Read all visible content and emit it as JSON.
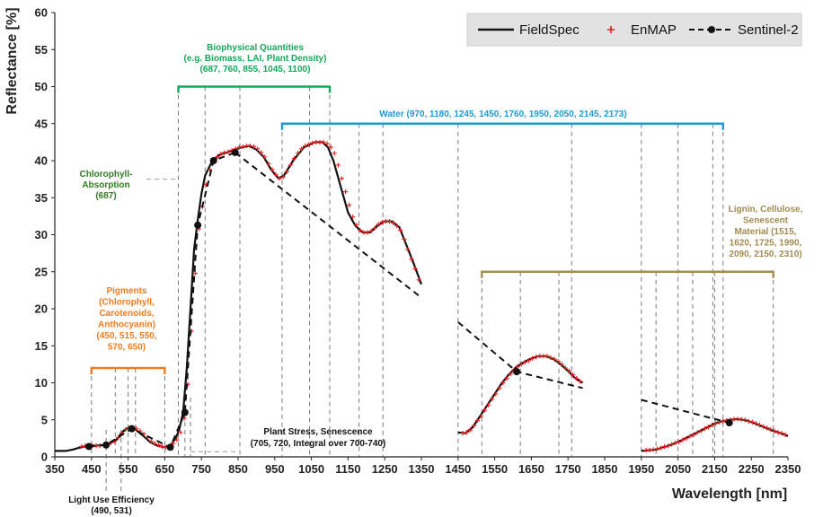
{
  "chart_data": {
    "type": "line",
    "xlabel": "Wavelength [nm]",
    "ylabel": "Reflectance [%]",
    "xlim": [
      350,
      2350
    ],
    "ylim": [
      0,
      60
    ],
    "x_ticks": [
      "350",
      "450",
      "550",
      "650",
      "750",
      "850",
      "950",
      "1050",
      "1150",
      "1250",
      "1350",
      "1450",
      "1550",
      "1650",
      "1750",
      "1850",
      "1950",
      "2050",
      "2150",
      "2250",
      "2350"
    ],
    "y_ticks": [
      "0",
      "5",
      "10",
      "15",
      "20",
      "25",
      "30",
      "35",
      "40",
      "45",
      "50",
      "55",
      "60"
    ],
    "grid": false,
    "legend": {
      "placement": "top-right",
      "entries": [
        {
          "label": "FieldSpec",
          "style": "solid-line",
          "color": "#111111"
        },
        {
          "label": "EnMAP",
          "style": "plus-marker",
          "color": "#e8201c"
        },
        {
          "label": "Sentinel-2",
          "style": "dashed-line-dot",
          "color": "#111111"
        }
      ]
    },
    "series": [
      {
        "name": "FieldSpec",
        "segments": [
          {
            "x": [
              350,
              380,
              400,
              420,
              440,
              460,
              480,
              500,
              520,
              535,
              550,
              560,
              570,
              590,
              610,
              630,
              650,
              665,
              680,
              690,
              700,
              710,
              720,
              730,
              740,
              750,
              760,
              780,
              800,
              830,
              860,
              880,
              900,
              920,
              940,
              960,
              975,
              1000,
              1030,
              1060,
              1080,
              1095,
              1110,
              1130,
              1150,
              1170,
              1190,
              1210,
              1230,
              1250,
              1270,
              1290,
              1310,
              1330,
              1350
            ],
            "y": [
              0.8,
              0.8,
              1.0,
              1.3,
              1.5,
              1.5,
              1.6,
              1.8,
              2.4,
              3.4,
              3.9,
              3.9,
              3.7,
              2.9,
              2.0,
              1.5,
              1.3,
              1.5,
              2.5,
              3.8,
              6.0,
              12.0,
              20.0,
              28.0,
              32.0,
              35.5,
              38.0,
              40.0,
              40.8,
              41.3,
              41.8,
              42.0,
              41.5,
              40.5,
              38.8,
              37.6,
              38.0,
              40.0,
              41.8,
              42.5,
              42.5,
              41.8,
              40.0,
              36.5,
              33.0,
              31.2,
              30.3,
              30.3,
              31.2,
              31.8,
              31.8,
              31.0,
              28.5,
              26.0,
              23.3
            ]
          },
          {
            "x": [
              1450,
              1470,
              1490,
              1510,
              1530,
              1550,
              1570,
              1590,
              1610,
              1630,
              1650,
              1670,
              1690,
              1710,
              1730,
              1750,
              1770,
              1790
            ],
            "y": [
              3.3,
              3.2,
              4.0,
              5.5,
              7.0,
              8.5,
              10.0,
              11.2,
              12.2,
              12.8,
              13.3,
              13.6,
              13.6,
              13.2,
              12.5,
              11.6,
              10.6,
              10.0
            ]
          },
          {
            "x": [
              1950,
              1970,
              1990,
              2010,
              2030,
              2050,
              2070,
              2090,
              2110,
              2130,
              2150,
              2170,
              2190,
              2210,
              2230,
              2250,
              2270,
              2290,
              2310,
              2330,
              2350
            ],
            "y": [
              0.8,
              0.9,
              1.0,
              1.3,
              1.6,
              2.0,
              2.5,
              3.0,
              3.5,
              4.0,
              4.5,
              4.8,
              5.0,
              5.1,
              5.0,
              4.7,
              4.3,
              3.9,
              3.5,
              3.2,
              2.8
            ]
          }
        ]
      },
      {
        "name": "EnMAP",
        "segments": [
          {
            "x": [
              423,
              433,
              443,
              453,
              463,
              473,
              483,
              493,
              503,
              513,
              523,
              533,
              543,
              553,
              563,
              573,
              583,
              593,
              603,
              613,
              623,
              633,
              643,
              653,
              663,
              673,
              683,
              693,
              703,
              713,
              723,
              733,
              743,
              753,
              763,
              773,
              783,
              793,
              803,
              813,
              823,
              833,
              843,
              853,
              863,
              873,
              883,
              893,
              903,
              913,
              923,
              933,
              943,
              953,
              963,
              973,
              983,
              993,
              1003,
              1013,
              1023,
              1033,
              1043,
              1053,
              1063,
              1073,
              1083,
              1093,
              1103,
              1113,
              1123,
              1133,
              1143,
              1153,
              1163,
              1173,
              1183,
              1193,
              1203,
              1213,
              1223,
              1233,
              1243,
              1253,
              1263,
              1273,
              1283,
              1293,
              1303,
              1313,
              1323,
              1333,
              1343
            ],
            "y": [
              1.4,
              1.5,
              1.5,
              1.5,
              1.5,
              1.5,
              1.6,
              1.7,
              1.9,
              2.1,
              2.6,
              3.2,
              3.7,
              3.9,
              3.9,
              3.8,
              3.5,
              3.1,
              2.6,
              2.1,
              1.8,
              1.6,
              1.4,
              1.3,
              1.4,
              1.8,
              2.3,
              3.3,
              5.2,
              9.8,
              17.0,
              24.8,
              30.8,
              33.8,
              36.8,
              38.8,
              40.0,
              40.5,
              40.9,
              41.1,
              41.2,
              41.4,
              41.6,
              41.8,
              41.9,
              42.0,
              42.0,
              41.9,
              41.6,
              41.1,
              40.5,
              39.6,
              38.8,
              38.1,
              37.6,
              37.8,
              38.5,
              39.4,
              40.3,
              41.0,
              41.6,
              42.0,
              42.2,
              42.4,
              42.5,
              42.5,
              42.5,
              42.3,
              41.8,
              41.0,
              39.4,
              37.6,
              35.8,
              34.0,
              32.4,
              31.3,
              30.6,
              30.3,
              30.3,
              30.5,
              30.9,
              31.4,
              31.7,
              31.8,
              31.8,
              31.6,
              31.2,
              30.6,
              29.4,
              28.0,
              26.7,
              25.4,
              23.9
            ]
          },
          {
            "x": [
              1463,
              1473,
              1483,
              1493,
              1503,
              1513,
              1523,
              1533,
              1543,
              1553,
              1563,
              1573,
              1583,
              1593,
              1603,
              1613,
              1623,
              1633,
              1643,
              1653,
              1663,
              1673,
              1683,
              1693,
              1703,
              1713,
              1723,
              1733,
              1743,
              1753,
              1763,
              1773,
              1783
            ],
            "y": [
              3.2,
              3.3,
              3.6,
              4.2,
              4.9,
              5.5,
              6.3,
              7.0,
              7.8,
              8.5,
              9.3,
              10.0,
              10.6,
              11.2,
              11.7,
              12.2,
              12.5,
              12.8,
              13.0,
              13.3,
              13.5,
              13.6,
              13.6,
              13.6,
              13.4,
              13.2,
              12.9,
              12.5,
              12.0,
              11.6,
              11.1,
              10.6,
              10.2
            ]
          },
          {
            "x": [
              1963,
              1973,
              1983,
              1993,
              2003,
              2013,
              2023,
              2033,
              2043,
              2053,
              2063,
              2073,
              2083,
              2093,
              2103,
              2113,
              2123,
              2133,
              2143,
              2153,
              2163,
              2173,
              2183,
              2193,
              2203,
              2213,
              2223,
              2233,
              2243,
              2253,
              2263,
              2273,
              2283,
              2293,
              2303,
              2313,
              2323,
              2333,
              2343
            ],
            "y": [
              0.9,
              0.9,
              1.0,
              1.1,
              1.2,
              1.4,
              1.5,
              1.7,
              1.9,
              2.0,
              2.3,
              2.5,
              2.8,
              3.0,
              3.3,
              3.5,
              3.8,
              4.0,
              4.3,
              4.5,
              4.7,
              4.8,
              4.9,
              5.0,
              5.1,
              5.1,
              5.1,
              5.0,
              4.8,
              4.7,
              4.5,
              4.3,
              4.1,
              3.9,
              3.7,
              3.5,
              3.3,
              3.2,
              3.0
            ]
          }
        ]
      },
      {
        "name": "Sentinel-2",
        "segments": [
          {
            "x": [
              443,
              490,
              560,
              665,
              705,
              740,
              783,
              842
            ],
            "y": [
              1.4,
              1.6,
              3.8,
              1.3,
              6.0,
              31.3,
              40.0,
              41.1
            ]
          },
          {
            "x": [
              842,
              1350
            ],
            "y": [
              41.1,
              21.5
            ]
          },
          {
            "x": [
              1450,
              1610,
              1790
            ],
            "y": [
              18.2,
              11.5,
              9.3
            ]
          },
          {
            "x": [
              1950,
              2190
            ],
            "y": [
              7.7,
              4.6
            ]
          }
        ],
        "points": {
          "x": [
            443,
            490,
            560,
            665,
            705,
            740,
            783,
            842,
            1610,
            2190
          ],
          "y": [
            1.4,
            1.6,
            3.8,
            1.3,
            6.0,
            31.3,
            40.0,
            41.1,
            11.5,
            4.6
          ]
        }
      }
    ],
    "annotations": [
      {
        "id": "biophysical",
        "color": "#14a85a",
        "lines": [
          "Biophysical Quantities",
          "(e.g. Biomass, LAI, Plant Density)",
          "(687, 760, 855, 1045, 1100)"
        ],
        "bracket_x": [
          687,
          1100
        ],
        "bracket_y": 50,
        "markers": [
          687,
          760,
          855,
          1045,
          1100
        ]
      },
      {
        "id": "water",
        "color": "#1a9bd7",
        "lines": [
          "Water (970, 1180, 1245, 1450, 1760, 1950, 2050, 2145, 2173)"
        ],
        "bracket_x": [
          970,
          2173
        ],
        "bracket_y": 45,
        "markers": [
          970,
          1180,
          1245,
          1450,
          1760,
          1950,
          2050,
          2145,
          2173
        ]
      },
      {
        "id": "chlorophyll",
        "color": "#2e7d1e",
        "lines": [
          "Chlorophyll-",
          "Absorption",
          "(687)"
        ],
        "pointer_y": 37.5,
        "markers": [
          687
        ]
      },
      {
        "id": "pigments",
        "color": "#f07c1e",
        "lines": [
          "Pigments",
          "(Chlorophyll,",
          "Carotenoids,",
          "Anthocyanin)",
          "(450, 515, 550,",
          "570, 650)"
        ],
        "bracket_x": [
          450,
          650
        ],
        "bracket_y": 12,
        "markers": [
          450,
          515,
          550,
          570,
          650
        ]
      },
      {
        "id": "lignin",
        "color": "#a08c50",
        "lines": [
          "Lignin, Cellulose,",
          "Senescent",
          "Material (1515,",
          "1620, 1725, 1990,",
          "2090, 2150, 2310)"
        ],
        "bracket_x": [
          1515,
          2310
        ],
        "bracket_y": 25,
        "markers": [
          1515,
          1620,
          1725,
          1990,
          2090,
          2150,
          2310
        ]
      },
      {
        "id": "stress",
        "color": "#111111",
        "lines": [
          "Plant Stress, Senescence",
          "(705, 720, Integral over 700-740)"
        ],
        "pointer_y": 0.7,
        "markers": [
          705,
          720
        ]
      },
      {
        "id": "luE",
        "color": "#111111",
        "lines": [
          "Light Use Efficiency",
          "(490, 531)"
        ],
        "markers": [
          490,
          531
        ]
      }
    ]
  }
}
